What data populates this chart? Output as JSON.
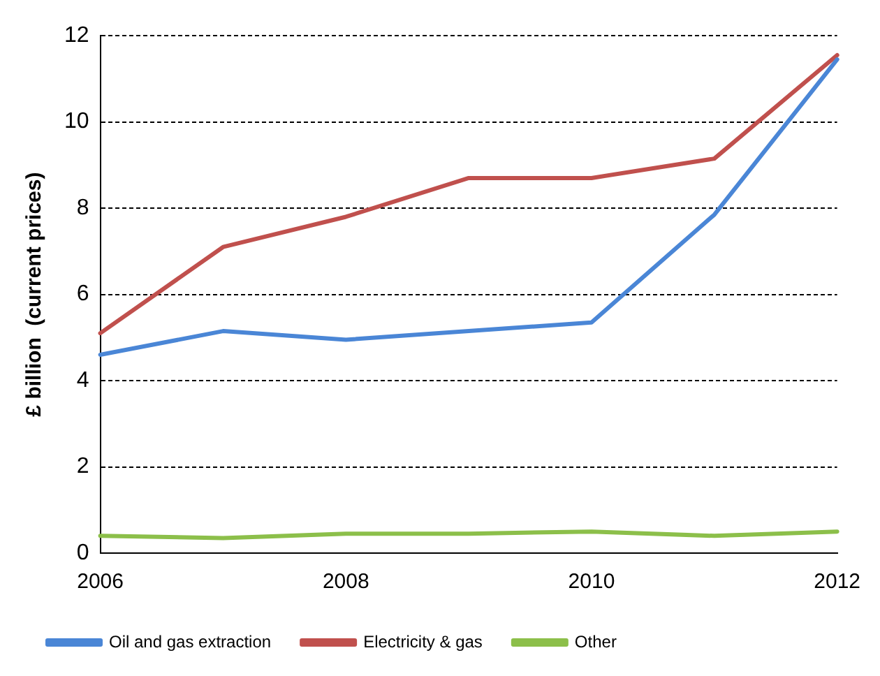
{
  "chart_data": {
    "type": "line",
    "ylabel": "£ billion  (current prices)",
    "x": [
      2006,
      2007,
      2008,
      2009,
      2010,
      2011,
      2012
    ],
    "series": [
      {
        "name": "Oil and gas extraction",
        "color": "#4a86d6",
        "values": [
          4.6,
          5.15,
          4.95,
          5.15,
          5.35,
          7.85,
          11.45
        ]
      },
      {
        "name": "Electricity & gas",
        "color": "#c0504d",
        "values": [
          5.1,
          7.1,
          7.8,
          8.7,
          8.7,
          9.15,
          11.55
        ]
      },
      {
        "name": "Other",
        "color": "#8cbf4a",
        "values": [
          0.4,
          0.35,
          0.45,
          0.45,
          0.5,
          0.4,
          0.5
        ]
      }
    ],
    "xlim": [
      2006,
      2012
    ],
    "xticks": [
      2006,
      2008,
      2010,
      2012
    ],
    "ylim": [
      0,
      12
    ],
    "yticks": [
      0,
      2,
      4,
      6,
      8,
      10,
      12
    ],
    "grid": "y",
    "legend": "bottom",
    "marker": "none",
    "line_style": "solid"
  }
}
